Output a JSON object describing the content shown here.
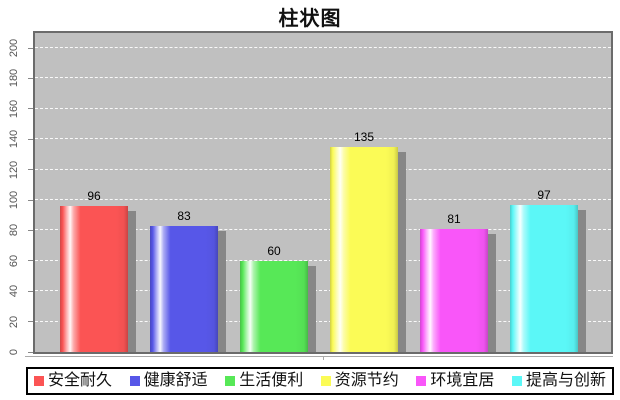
{
  "chart_data": {
    "type": "bar",
    "title": "柱状图",
    "categories": [
      "安全耐久",
      "健康舒适",
      "生活便利",
      "资源节约",
      "环境宜居",
      "提高与创新"
    ],
    "values": [
      96,
      83,
      60,
      135,
      81,
      97
    ],
    "colors": [
      "#fb5454",
      "#5757e8",
      "#57e857",
      "#fbfb56",
      "#f956f9",
      "#5bf7f7"
    ],
    "yticks": [
      0,
      20,
      40,
      60,
      80,
      100,
      120,
      140,
      160,
      180,
      200
    ],
    "ylim": [
      0,
      200
    ],
    "xlabel": "",
    "ylabel": "",
    "grid": "horizontal-dashed-white",
    "plot_background": "#c0c0c0",
    "bar_shadow_color": "#878787",
    "legend_position": "bottom"
  }
}
